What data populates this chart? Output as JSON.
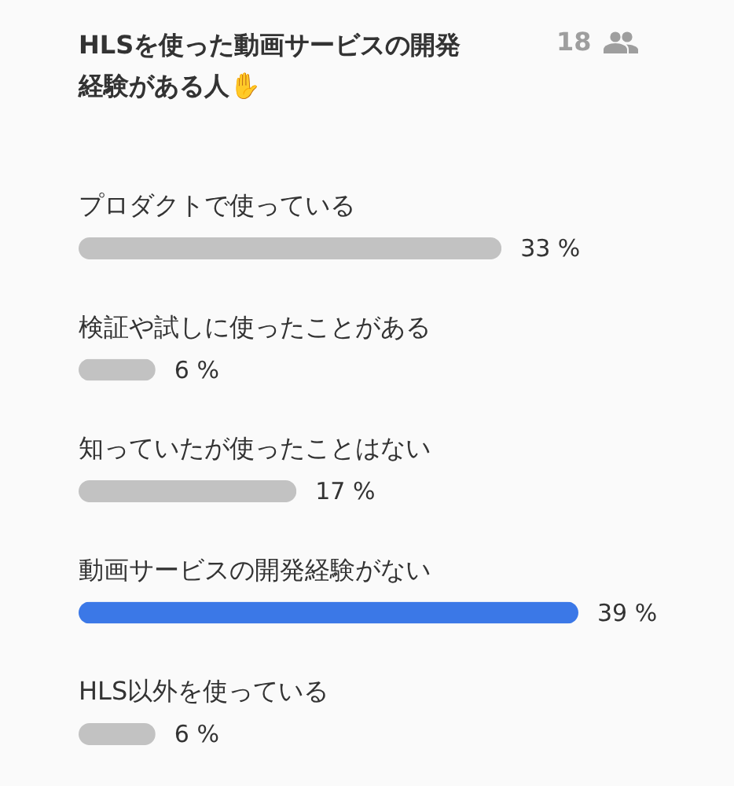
{
  "chart_data": {
    "type": "bar",
    "orientation": "horizontal",
    "title": "HLSを使った動画サービスの開発経験がある人✋",
    "annotations": [
      "18"
    ],
    "categories": [
      "プロダクトで使っている",
      "検証や試しに使ったことがある",
      "知っていたが使ったことはない",
      "動画サービスの開発経験がない",
      "HLS以外を使っている"
    ],
    "values": [
      33,
      6,
      17,
      39,
      6
    ],
    "value_labels": [
      "33 %",
      "6 %",
      "17 %",
      "39 %",
      "6 %"
    ],
    "colors": [
      "#c2c2c2",
      "#c2c2c2",
      "#c2c2c2",
      "#3b78e7",
      "#c2c2c2"
    ]
  }
}
